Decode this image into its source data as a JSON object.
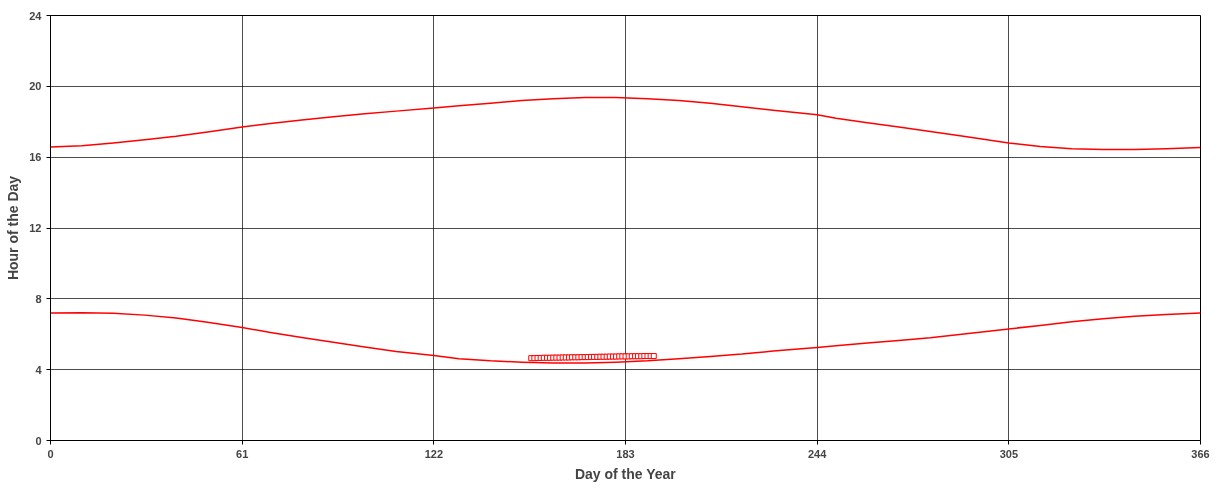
{
  "chart_data": {
    "type": "line",
    "xlabel": "Day of the Year",
    "ylabel": "Hour of the Day",
    "xlim": [
      0,
      366
    ],
    "ylim": [
      0,
      24
    ],
    "xticks": [
      0,
      61,
      122,
      183,
      244,
      305,
      366
    ],
    "yticks": [
      0,
      4,
      8,
      12,
      16,
      20,
      24
    ],
    "grid": true,
    "marker": "none",
    "line_style": "solid",
    "series": [
      {
        "color": "#ff0000",
        "x": [
          0,
          10,
          20,
          30,
          40,
          50,
          61,
          70,
          80,
          90,
          100,
          110,
          122,
          130,
          140,
          150,
          160,
          170,
          180,
          190,
          200,
          210,
          220,
          230,
          244,
          250,
          260,
          270,
          280,
          290,
          305,
          315,
          325,
          335,
          345,
          355,
          366
        ],
        "values": [
          16.57,
          16.65,
          16.8,
          16.98,
          17.18,
          17.42,
          17.7,
          17.9,
          18.1,
          18.28,
          18.45,
          18.6,
          18.77,
          18.9,
          19.05,
          19.2,
          19.3,
          19.37,
          19.37,
          19.3,
          19.2,
          19.05,
          18.85,
          18.65,
          18.4,
          18.2,
          17.95,
          17.7,
          17.45,
          17.2,
          16.8,
          16.6,
          16.48,
          16.43,
          16.43,
          16.47,
          16.55
        ]
      },
      {
        "color": "#ff0000",
        "x": [
          0,
          10,
          20,
          30,
          40,
          50,
          61,
          70,
          80,
          90,
          100,
          110,
          122,
          130,
          140,
          150,
          160,
          170,
          180,
          190,
          200,
          210,
          220,
          230,
          244,
          250,
          260,
          270,
          280,
          290,
          305,
          315,
          325,
          335,
          345,
          355,
          366
        ],
        "values": [
          7.2,
          7.22,
          7.18,
          7.08,
          6.92,
          6.68,
          6.38,
          6.1,
          5.82,
          5.55,
          5.28,
          5.02,
          4.8,
          4.62,
          4.5,
          4.42,
          4.37,
          4.37,
          4.42,
          4.5,
          4.62,
          4.75,
          4.88,
          5.05,
          5.25,
          5.35,
          5.5,
          5.65,
          5.8,
          6.0,
          6.3,
          6.5,
          6.7,
          6.88,
          7.02,
          7.12,
          7.2
        ]
      },
      {
        "type": "scatter",
        "marker": "square",
        "color": "#ff0000",
        "x": [
          153,
          154,
          155,
          156,
          157,
          158,
          159,
          160,
          161,
          162,
          163,
          164,
          165,
          166,
          167,
          168,
          169,
          170,
          171,
          172,
          173,
          174,
          175,
          176,
          177,
          178,
          179,
          180,
          181,
          182,
          183,
          184,
          185,
          186,
          187,
          188,
          189,
          190,
          191,
          192
        ],
        "values": [
          4.65,
          4.65,
          4.66,
          4.66,
          4.67,
          4.67,
          4.67,
          4.68,
          4.68,
          4.68,
          4.69,
          4.69,
          4.69,
          4.7,
          4.7,
          4.7,
          4.71,
          4.71,
          4.71,
          4.72,
          4.72,
          4.72,
          4.73,
          4.73,
          4.73,
          4.74,
          4.74,
          4.74,
          4.75,
          4.75,
          4.75,
          4.75,
          4.76,
          4.76,
          4.76,
          4.76,
          4.77,
          4.77,
          4.77,
          4.77
        ]
      }
    ]
  }
}
